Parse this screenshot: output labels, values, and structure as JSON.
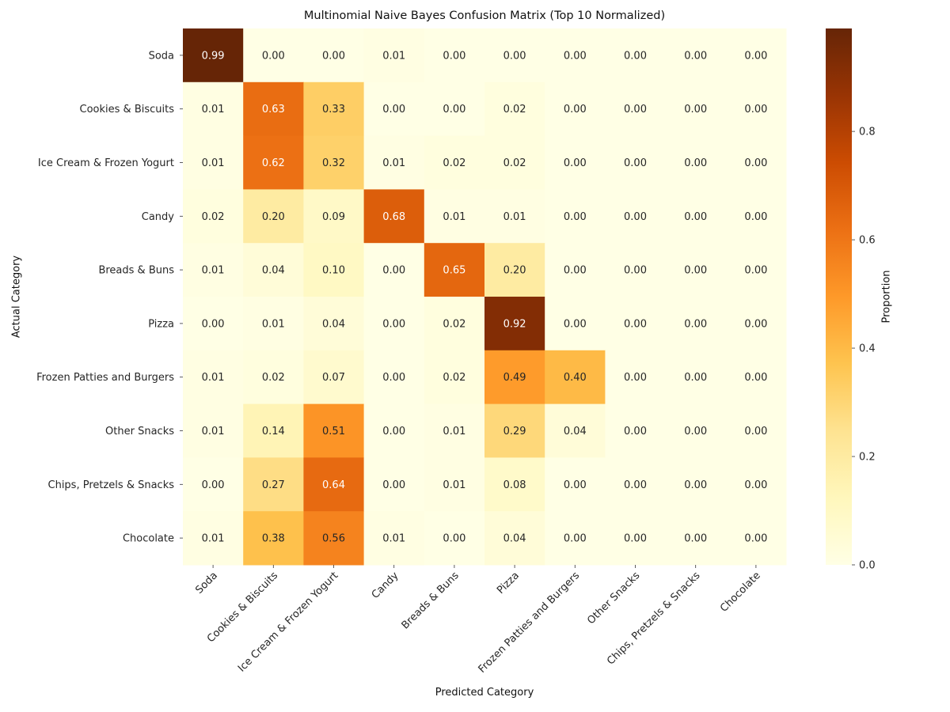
{
  "chart_data": {
    "type": "heatmap",
    "title": "Multinomial Naive Bayes Confusion Matrix (Top 10 Normalized)",
    "xlabel": "Predicted Category",
    "ylabel": "Actual Category",
    "colorbar": {
      "label": "Proportion",
      "colormap": "YlOrBr",
      "range": [
        0.0,
        0.99
      ],
      "ticks": [
        0.0,
        0.2,
        0.4,
        0.6,
        0.8
      ],
      "tick_labels": [
        "0.0",
        "0.2",
        "0.4",
        "0.6",
        "0.8"
      ]
    },
    "x_categories": [
      "Soda",
      "Cookies & Biscuits",
      "Ice Cream & Frozen Yogurt",
      "Candy",
      "Breads & Buns",
      "Pizza",
      "Frozen Patties and Burgers",
      "Other Snacks",
      "Chips, Pretzels & Snacks",
      "Chocolate"
    ],
    "y_categories": [
      "Soda",
      "Cookies & Biscuits",
      "Ice Cream & Frozen Yogurt",
      "Candy",
      "Breads & Buns",
      "Pizza",
      "Frozen Patties and Burgers",
      "Other Snacks",
      "Chips, Pretzels & Snacks",
      "Chocolate"
    ],
    "values": [
      [
        0.99,
        0.0,
        0.0,
        0.01,
        0.0,
        0.0,
        0.0,
        0.0,
        0.0,
        0.0
      ],
      [
        0.01,
        0.63,
        0.33,
        0.0,
        0.0,
        0.02,
        0.0,
        0.0,
        0.0,
        0.0
      ],
      [
        0.01,
        0.62,
        0.32,
        0.01,
        0.02,
        0.02,
        0.0,
        0.0,
        0.0,
        0.0
      ],
      [
        0.02,
        0.2,
        0.09,
        0.68,
        0.01,
        0.01,
        0.0,
        0.0,
        0.0,
        0.0
      ],
      [
        0.01,
        0.04,
        0.1,
        0.0,
        0.65,
        0.2,
        0.0,
        0.0,
        0.0,
        0.0
      ],
      [
        0.0,
        0.01,
        0.04,
        0.0,
        0.02,
        0.92,
        0.0,
        0.0,
        0.0,
        0.0
      ],
      [
        0.01,
        0.02,
        0.07,
        0.0,
        0.02,
        0.49,
        0.4,
        0.0,
        0.0,
        0.0
      ],
      [
        0.01,
        0.14,
        0.51,
        0.0,
        0.01,
        0.29,
        0.04,
        0.0,
        0.0,
        0.0
      ],
      [
        0.0,
        0.27,
        0.64,
        0.0,
        0.01,
        0.08,
        0.0,
        0.0,
        0.0,
        0.0
      ],
      [
        0.01,
        0.38,
        0.56,
        0.01,
        0.0,
        0.04,
        0.0,
        0.0,
        0.0,
        0.0
      ]
    ],
    "value_format": "0.00",
    "grid": false,
    "legend": "colorbar-right"
  }
}
